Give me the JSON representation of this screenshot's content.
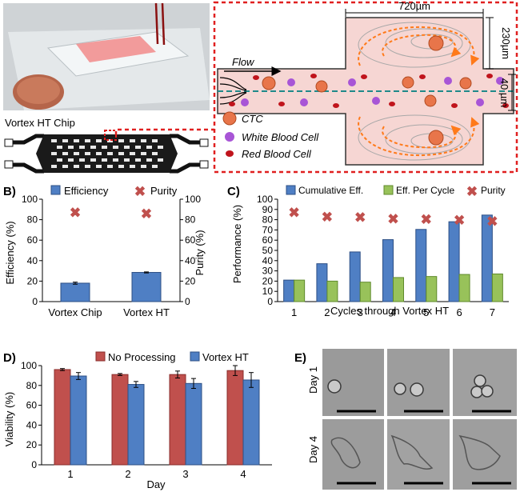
{
  "panel_a": {
    "letter": "A)",
    "chip_name": "Vortex HT Chip",
    "dim_width": "720µm",
    "dim_height": "230µm",
    "dim_channel": "40 µm",
    "flow_label": "Flow",
    "legend": [
      {
        "label": "CTC",
        "color": "#e8754a"
      },
      {
        "label": "White Blood Cell",
        "color": "#a855d6"
      },
      {
        "label": "Red Blood Cell",
        "color": "#c0141c"
      }
    ]
  },
  "panel_b": {
    "letter": "B)",
    "legend_efficiency": "Efficiency",
    "legend_purity": "Purity",
    "ylabel_left": "Efficiency (%)",
    "ylabel_right": "Purity (%)",
    "yticks": [
      "0",
      "20",
      "40",
      "60",
      "80",
      "100"
    ]
  },
  "panel_c": {
    "letter": "C)",
    "legend": [
      "Cumulative Eff.",
      "Eff. Per Cycle",
      "Purity"
    ],
    "xlabel": "Cycles through Vortex HT",
    "ylabel": "Performance (%)",
    "yticks": [
      "0",
      "10",
      "20",
      "30",
      "40",
      "50",
      "60",
      "70",
      "80",
      "90",
      "100"
    ]
  },
  "panel_d": {
    "letter": "D)",
    "legend": [
      "No Processing",
      "Vortex HT"
    ],
    "xlabel": "Day",
    "ylabel": "Viability (%)",
    "yticks": [
      "0",
      "20",
      "40",
      "60",
      "80",
      "100"
    ]
  },
  "panel_e": {
    "letter": "E)",
    "row_labels": [
      "Day 1",
      "Day 4"
    ]
  },
  "colors": {
    "blue": "#4f7fc4",
    "green": "#98c25a",
    "red": "#c0504d",
    "purity": "#c0504d",
    "dash": "#e02020"
  },
  "chart_data": [
    {
      "type": "bar",
      "categories": [
        "Vortex Chip",
        "Vortex HT"
      ],
      "series": [
        {
          "name": "Efficiency",
          "values": [
            18,
            28.5
          ],
          "errors": [
            1,
            0.5
          ]
        },
        {
          "name": "Purity",
          "values": [
            87,
            86
          ],
          "errors": [
            2,
            1.5
          ],
          "marker": "x"
        }
      ],
      "ylim": [
        0,
        100
      ]
    },
    {
      "type": "bar",
      "categories": [
        "1",
        "2",
        "3",
        "4",
        "5",
        "6",
        "7"
      ],
      "series": [
        {
          "name": "Cumulative Eff.",
          "values": [
            21,
            37,
            48.5,
            60.5,
            70.5,
            78,
            84.5
          ]
        },
        {
          "name": "Eff. Per Cycle",
          "values": [
            21,
            20,
            19,
            23.5,
            24.5,
            26.5,
            27
          ]
        },
        {
          "name": "Purity",
          "values": [
            87,
            83,
            82.5,
            81,
            80.5,
            79.5,
            78.5
          ],
          "marker": "x"
        }
      ],
      "ylim": [
        0,
        100
      ]
    },
    {
      "type": "bar",
      "categories": [
        "1",
        "2",
        "3",
        "4"
      ],
      "series": [
        {
          "name": "No Processing",
          "values": [
            96,
            91,
            91,
            95
          ],
          "errors": [
            1,
            1,
            3.5,
            5
          ]
        },
        {
          "name": "Vortex HT",
          "values": [
            89.5,
            81,
            82,
            85.5
          ],
          "errors": [
            3.5,
            3,
            5,
            7.5
          ]
        }
      ],
      "ylim": [
        0,
        100
      ]
    }
  ]
}
